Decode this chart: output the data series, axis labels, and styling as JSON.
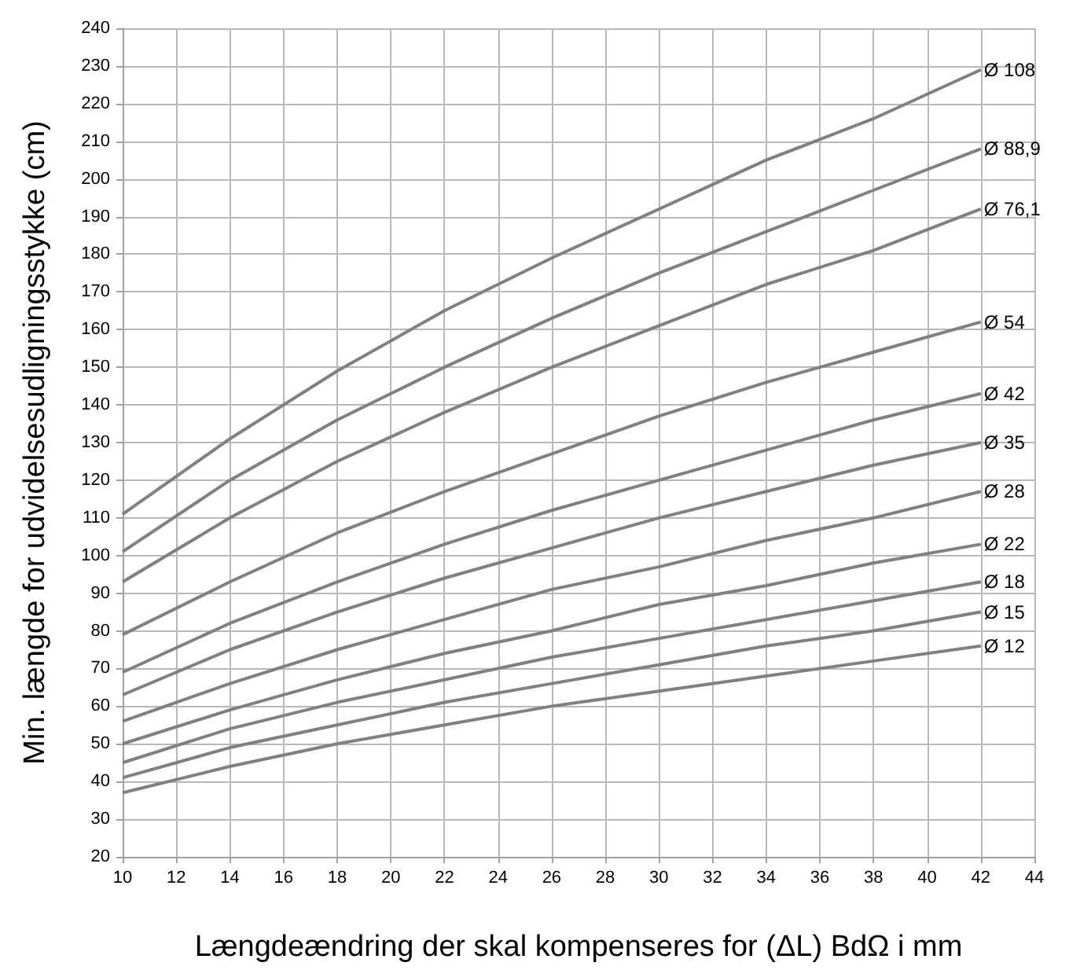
{
  "chart_data": {
    "type": "line",
    "xlabel": "Længdeændring der skal kompenseres for (ΔL) BdΩ i mm",
    "ylabel": "Min. længde for udvidelsesudligningsstykke (cm)",
    "x": [
      10,
      14,
      18,
      22,
      26,
      30,
      34,
      38,
      42
    ],
    "series": [
      {
        "name": "Ø 108",
        "color": "#808080",
        "values": [
          111,
          131,
          149,
          165,
          179,
          192,
          205,
          216,
          229
        ]
      },
      {
        "name": "Ø 88,9",
        "color": "#808080",
        "values": [
          101,
          120,
          136,
          150,
          163,
          175,
          186,
          197,
          208
        ]
      },
      {
        "name": "Ø 76,1",
        "color": "#808080",
        "values": [
          93,
          110,
          125,
          138,
          150,
          161,
          172,
          181,
          192
        ]
      },
      {
        "name": "Ø 54",
        "color": "#808080",
        "values": [
          79,
          93,
          106,
          117,
          127,
          137,
          146,
          154,
          162
        ]
      },
      {
        "name": "Ø 42",
        "color": "#808080",
        "values": [
          69,
          82,
          93,
          103,
          112,
          120,
          128,
          136,
          143
        ]
      },
      {
        "name": "Ø 35",
        "color": "#808080",
        "values": [
          63,
          75,
          85,
          94,
          102,
          110,
          117,
          124,
          130
        ]
      },
      {
        "name": "Ø 28",
        "color": "#808080",
        "values": [
          56,
          66,
          75,
          83,
          91,
          97,
          104,
          110,
          117
        ]
      },
      {
        "name": "Ø 22",
        "color": "#808080",
        "values": [
          50,
          59,
          67,
          74,
          80,
          87,
          92,
          98,
          103
        ]
      },
      {
        "name": "Ø 18",
        "color": "#808080",
        "values": [
          45,
          54,
          61,
          67,
          73,
          78,
          83,
          88,
          93
        ]
      },
      {
        "name": "Ø 15",
        "color": "#808080",
        "values": [
          41,
          49,
          55,
          61,
          66,
          71,
          76,
          80,
          85
        ]
      },
      {
        "name": "Ø 12",
        "color": "#808080",
        "values": [
          37,
          44,
          50,
          55,
          60,
          64,
          68,
          72,
          76
        ]
      }
    ],
    "xlim": [
      10,
      44
    ],
    "xticks": [
      10,
      12,
      14,
      16,
      18,
      20,
      22,
      24,
      26,
      28,
      30,
      32,
      34,
      36,
      38,
      40,
      42,
      44
    ],
    "ylim": [
      20,
      240
    ],
    "yticks": [
      20,
      30,
      40,
      50,
      60,
      70,
      80,
      90,
      100,
      110,
      120,
      130,
      140,
      150,
      160,
      170,
      180,
      190,
      200,
      210,
      220,
      230,
      240
    ],
    "grid": true,
    "legend": false,
    "marker": "none",
    "line_style": "solid"
  }
}
